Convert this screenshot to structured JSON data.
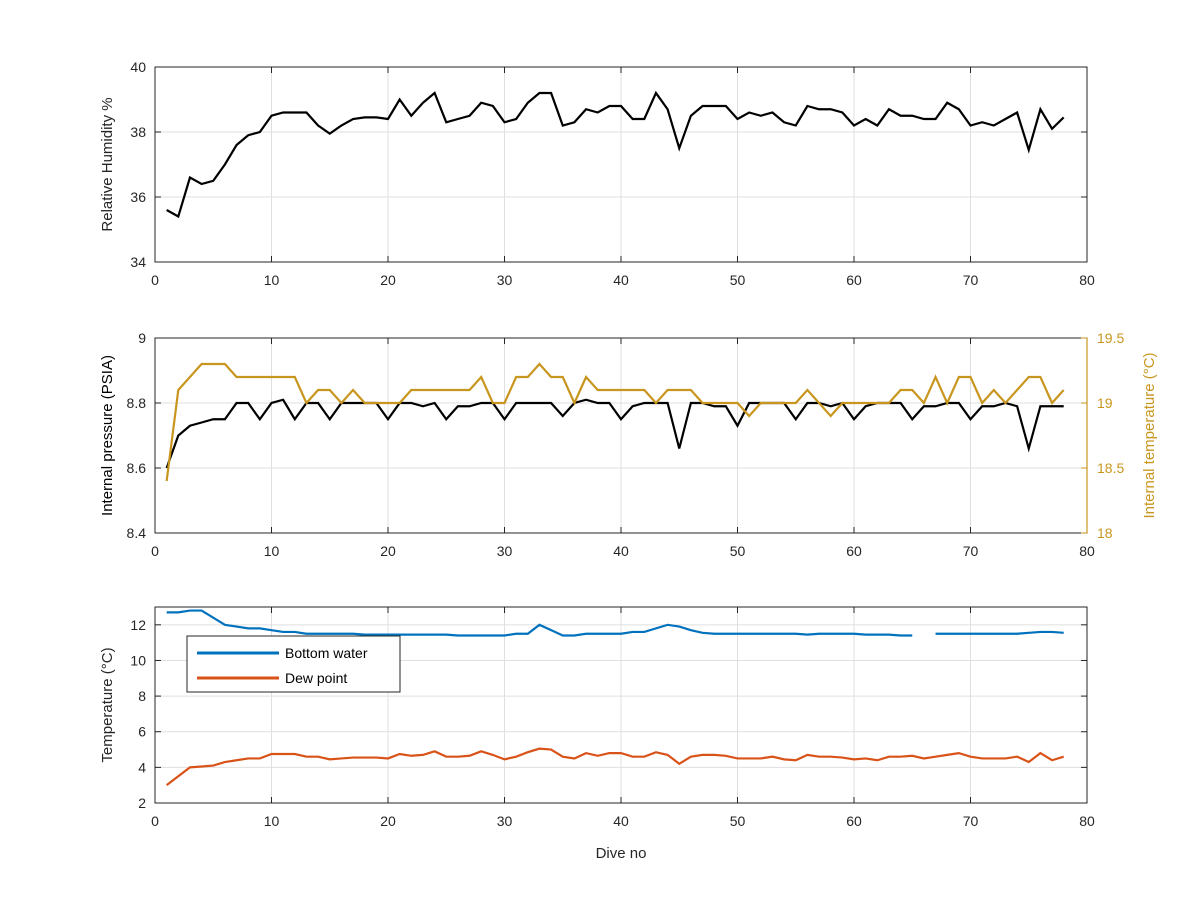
{
  "chart_data": [
    {
      "type": "line",
      "ylabel": "Relative Humidity %",
      "xlabel": "",
      "xlim": [
        0,
        80
      ],
      "ylim": [
        34,
        40
      ],
      "xticks": [
        0,
        10,
        20,
        30,
        40,
        50,
        60,
        70,
        80
      ],
      "yticks": [
        34,
        36,
        38,
        40
      ],
      "grid": true,
      "series": [
        {
          "color": "#000000",
          "x": [
            1,
            2,
            3,
            4,
            5,
            6,
            7,
            8,
            9,
            10,
            11,
            12,
            13,
            14,
            15,
            16,
            17,
            18,
            19,
            20,
            21,
            22,
            23,
            24,
            25,
            26,
            27,
            28,
            29,
            30,
            31,
            32,
            33,
            34,
            35,
            36,
            37,
            38,
            39,
            40,
            41,
            42,
            43,
            44,
            45,
            46,
            47,
            48,
            49,
            50,
            51,
            52,
            53,
            54,
            55,
            56,
            57,
            58,
            59,
            60,
            61,
            62,
            63,
            64,
            65,
            66,
            67,
            68,
            69,
            70,
            71,
            72,
            73,
            74,
            75,
            76,
            77,
            78
          ],
          "values": [
            35.6,
            35.4,
            36.6,
            36.4,
            36.5,
            37.0,
            37.6,
            37.9,
            38.0,
            38.5,
            38.6,
            38.6,
            38.6,
            38.2,
            37.95,
            38.2,
            38.4,
            38.45,
            38.45,
            38.4,
            39.0,
            38.5,
            38.9,
            39.2,
            38.3,
            38.4,
            38.5,
            38.9,
            38.8,
            38.3,
            38.4,
            38.9,
            39.2,
            39.2,
            38.2,
            38.3,
            38.7,
            38.6,
            38.8,
            38.8,
            38.4,
            38.4,
            39.2,
            38.7,
            37.5,
            38.5,
            38.8,
            38.8,
            38.8,
            38.4,
            38.6,
            38.5,
            38.6,
            38.3,
            38.2,
            38.8,
            38.7,
            38.7,
            38.6,
            38.2,
            38.4,
            38.2,
            38.7,
            38.5,
            38.5,
            38.4,
            38.4,
            38.9,
            38.7,
            38.2,
            38.3,
            38.2,
            38.4,
            38.6,
            37.45,
            38.7,
            38.1,
            38.45
          ]
        }
      ]
    },
    {
      "type": "line",
      "ylabel": "Internal pressure (PSIA)",
      "ylabel_right": "Internal temperature (°C)",
      "xlabel": "",
      "xlim": [
        0,
        80
      ],
      "ylim": [
        8.4,
        9
      ],
      "ylim_right": [
        18,
        19.5
      ],
      "xticks": [
        0,
        10,
        20,
        30,
        40,
        50,
        60,
        70,
        80
      ],
      "yticks": [
        8.4,
        8.6,
        8.8,
        9
      ],
      "yticks_labels": [
        "8.4",
        "8.6",
        "8.8",
        "9"
      ],
      "yticks_right": [
        18,
        18.5,
        19,
        19.5
      ],
      "yticks_right_labels": [
        "18",
        "18.5",
        "19",
        "19.5"
      ],
      "grid": true,
      "series": [
        {
          "axis": "left",
          "color": "#000000",
          "x": [
            1,
            2,
            3,
            4,
            5,
            6,
            7,
            8,
            9,
            10,
            11,
            12,
            13,
            14,
            15,
            16,
            17,
            18,
            19,
            20,
            21,
            22,
            23,
            24,
            25,
            26,
            27,
            28,
            29,
            30,
            31,
            32,
            33,
            34,
            35,
            36,
            37,
            38,
            39,
            40,
            41,
            42,
            43,
            44,
            45,
            46,
            47,
            48,
            49,
            50,
            51,
            52,
            53,
            54,
            55,
            56,
            57,
            58,
            59,
            60,
            61,
            62,
            63,
            64,
            65,
            66,
            67,
            68,
            69,
            70,
            71,
            72,
            73,
            74,
            75,
            76,
            77,
            78
          ],
          "values": [
            8.6,
            8.7,
            8.73,
            8.74,
            8.75,
            8.75,
            8.8,
            8.8,
            8.75,
            8.8,
            8.81,
            8.75,
            8.8,
            8.8,
            8.75,
            8.8,
            8.8,
            8.8,
            8.8,
            8.75,
            8.8,
            8.8,
            8.79,
            8.8,
            8.75,
            8.79,
            8.79,
            8.8,
            8.8,
            8.75,
            8.8,
            8.8,
            8.8,
            8.8,
            8.76,
            8.8,
            8.81,
            8.8,
            8.8,
            8.75,
            8.79,
            8.8,
            8.8,
            8.8,
            8.66,
            8.8,
            8.8,
            8.79,
            8.79,
            8.73,
            8.8,
            8.8,
            8.8,
            8.8,
            8.75,
            8.8,
            8.8,
            8.79,
            8.8,
            8.75,
            8.79,
            8.8,
            8.8,
            8.8,
            8.75,
            8.79,
            8.79,
            8.8,
            8.8,
            8.75,
            8.79,
            8.79,
            8.8,
            8.79,
            8.66,
            8.79,
            8.79,
            8.79
          ]
        },
        {
          "axis": "right",
          "color": "#c8961e",
          "x": [
            1,
            2,
            3,
            4,
            5,
            6,
            7,
            8,
            9,
            10,
            11,
            12,
            13,
            14,
            15,
            16,
            17,
            18,
            19,
            20,
            21,
            22,
            23,
            24,
            25,
            26,
            27,
            28,
            29,
            30,
            31,
            32,
            33,
            34,
            35,
            36,
            37,
            38,
            39,
            40,
            41,
            42,
            43,
            44,
            45,
            46,
            47,
            48,
            49,
            50,
            51,
            52,
            53,
            54,
            55,
            56,
            57,
            58,
            59,
            60,
            61,
            62,
            63,
            64,
            65,
            66,
            67,
            68,
            69,
            70,
            71,
            72,
            73,
            74,
            75,
            76,
            77,
            78
          ],
          "values": [
            18.4,
            19.1,
            19.2,
            19.3,
            19.3,
            19.3,
            19.2,
            19.2,
            19.2,
            19.2,
            19.2,
            19.2,
            19.0,
            19.1,
            19.1,
            19.0,
            19.1,
            19.0,
            19.0,
            19.0,
            19.0,
            19.1,
            19.1,
            19.1,
            19.1,
            19.1,
            19.1,
            19.2,
            19.0,
            19.0,
            19.2,
            19.2,
            19.3,
            19.2,
            19.2,
            19.0,
            19.2,
            19.1,
            19.1,
            19.1,
            19.1,
            19.1,
            19.0,
            19.1,
            19.1,
            19.1,
            19.0,
            19.0,
            19.0,
            19.0,
            18.9,
            19.0,
            19.0,
            19.0,
            19.0,
            19.1,
            19.0,
            18.9,
            19.0,
            19.0,
            19.0,
            19.0,
            19.0,
            19.1,
            19.1,
            19.0,
            19.2,
            19.0,
            19.2,
            19.2,
            19.0,
            19.1,
            19.0,
            19.1,
            19.2,
            19.2,
            19.0,
            19.1
          ]
        }
      ]
    },
    {
      "type": "line",
      "ylabel": "Temperature (°C)",
      "xlabel": "Dive no",
      "xlim": [
        0,
        80
      ],
      "ylim": [
        2,
        13
      ],
      "xticks": [
        0,
        10,
        20,
        30,
        40,
        50,
        60,
        70,
        80
      ],
      "yticks": [
        2,
        4,
        6,
        8,
        10,
        12
      ],
      "grid": true,
      "legend_position": "top-left",
      "series": [
        {
          "name": "Bottom water",
          "color": "#0072bd",
          "x": [
            1,
            2,
            3,
            4,
            5,
            6,
            7,
            8,
            9,
            10,
            11,
            12,
            13,
            14,
            15,
            16,
            17,
            18,
            19,
            20,
            21,
            22,
            23,
            24,
            25,
            26,
            27,
            28,
            29,
            30,
            31,
            32,
            33,
            34,
            35,
            36,
            37,
            38,
            39,
            40,
            41,
            42,
            43,
            44,
            45,
            46,
            47,
            48,
            49,
            50,
            51,
            52,
            53,
            54,
            55,
            56,
            57,
            58,
            59,
            60,
            61,
            62,
            63,
            64,
            65,
            66,
            67,
            68,
            69,
            70,
            71,
            72,
            73,
            74,
            75,
            76,
            77,
            78
          ],
          "values": [
            12.7,
            12.7,
            12.8,
            12.8,
            12.4,
            12.0,
            11.9,
            11.8,
            11.8,
            11.7,
            11.6,
            11.6,
            11.5,
            11.5,
            11.5,
            11.5,
            11.5,
            11.45,
            11.45,
            11.45,
            11.45,
            11.45,
            11.45,
            11.45,
            11.45,
            11.4,
            11.4,
            11.4,
            11.4,
            11.4,
            11.5,
            11.5,
            12.0,
            11.7,
            11.4,
            11.4,
            11.5,
            11.5,
            11.5,
            11.5,
            11.6,
            11.6,
            11.8,
            12.0,
            11.9,
            11.7,
            11.55,
            11.5,
            11.5,
            11.5,
            11.5,
            11.5,
            11.5,
            11.5,
            11.5,
            11.45,
            11.5,
            11.5,
            11.5,
            11.5,
            11.45,
            11.45,
            11.45,
            11.4,
            11.4,
            null,
            11.5,
            11.5,
            11.5,
            11.5,
            11.5,
            11.5,
            11.5,
            11.5,
            11.55,
            11.6,
            11.6,
            11.55
          ]
        },
        {
          "name": "Dew point",
          "color": "#d95319",
          "x": [
            1,
            2,
            3,
            4,
            5,
            6,
            7,
            8,
            9,
            10,
            11,
            12,
            13,
            14,
            15,
            16,
            17,
            18,
            19,
            20,
            21,
            22,
            23,
            24,
            25,
            26,
            27,
            28,
            29,
            30,
            31,
            32,
            33,
            34,
            35,
            36,
            37,
            38,
            39,
            40,
            41,
            42,
            43,
            44,
            45,
            46,
            47,
            48,
            49,
            50,
            51,
            52,
            53,
            54,
            55,
            56,
            57,
            58,
            59,
            60,
            61,
            62,
            63,
            64,
            65,
            66,
            67,
            68,
            69,
            70,
            71,
            72,
            73,
            74,
            75,
            76,
            77,
            78
          ],
          "values": [
            3.0,
            3.5,
            4.0,
            4.05,
            4.1,
            4.3,
            4.4,
            4.5,
            4.5,
            4.75,
            4.75,
            4.75,
            4.6,
            4.6,
            4.45,
            4.5,
            4.55,
            4.55,
            4.55,
            4.5,
            4.75,
            4.65,
            4.7,
            4.9,
            4.6,
            4.6,
            4.65,
            4.9,
            4.7,
            4.45,
            4.6,
            4.85,
            5.05,
            5.0,
            4.6,
            4.5,
            4.8,
            4.65,
            4.8,
            4.8,
            4.6,
            4.6,
            4.85,
            4.7,
            4.2,
            4.6,
            4.7,
            4.7,
            4.65,
            4.5,
            4.5,
            4.5,
            4.6,
            4.45,
            4.4,
            4.7,
            4.6,
            4.6,
            4.55,
            4.45,
            4.5,
            4.4,
            4.6,
            4.6,
            4.65,
            4.5,
            4.6,
            4.7,
            4.8,
            4.6,
            4.5,
            4.5,
            4.5,
            4.6,
            4.3,
            4.8,
            4.4,
            4.6
          ]
        }
      ]
    }
  ]
}
